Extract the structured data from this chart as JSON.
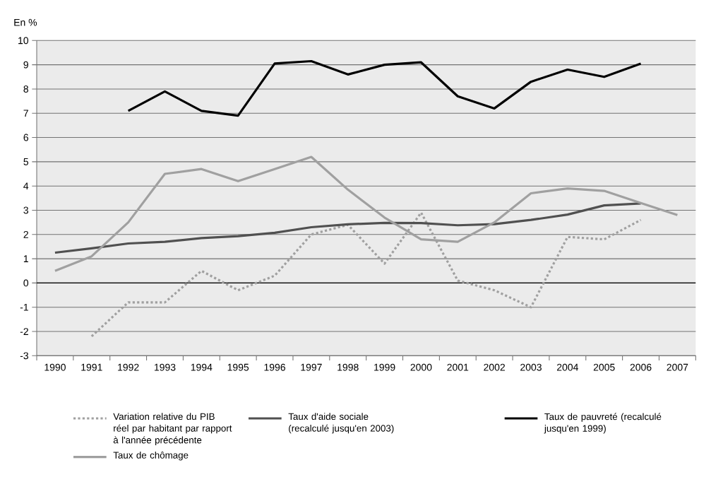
{
  "chart_data": {
    "type": "line",
    "ylabel": "En %",
    "categories": [
      "1990",
      "1991",
      "1992",
      "1993",
      "1994",
      "1995",
      "1996",
      "1997",
      "1998",
      "1999",
      "2000",
      "2001",
      "2002",
      "2003",
      "2004",
      "2005",
      "2006",
      "2007"
    ],
    "series": [
      {
        "name": "Variation relative du PIB réel par habitant par rapport à l'année précédente",
        "color": "#a0a0a0",
        "line_style": "dotted",
        "values": [
          null,
          -2.2,
          -0.8,
          -0.8,
          0.5,
          -0.3,
          0.3,
          2.0,
          2.4,
          0.8,
          2.9,
          0.1,
          -0.3,
          -1.0,
          1.9,
          1.8,
          2.6,
          null
        ]
      },
      {
        "name": "Taux d'aide sociale (recalculé jusqu'en 2003)",
        "color": "#505050",
        "values": [
          1.25,
          1.43,
          1.63,
          1.7,
          1.85,
          1.93,
          2.07,
          2.3,
          2.42,
          2.48,
          2.47,
          2.38,
          2.43,
          2.6,
          2.82,
          3.2,
          3.28,
          null
        ]
      },
      {
        "name": "Taux de pauvreté (recalculé jusqu'en 1999)",
        "color": "#000000",
        "values": [
          null,
          null,
          7.1,
          7.9,
          7.1,
          6.9,
          9.05,
          9.15,
          8.6,
          9.0,
          9.1,
          7.7,
          7.2,
          8.3,
          8.8,
          8.5,
          9.05,
          null
        ]
      },
      {
        "name": "Taux de chômage",
        "color": "#a0a0a0",
        "values": [
          0.5,
          1.1,
          2.5,
          4.5,
          4.7,
          4.2,
          4.7,
          5.2,
          3.85,
          2.7,
          1.8,
          1.7,
          2.5,
          3.7,
          3.9,
          3.8,
          3.3,
          2.8
        ]
      }
    ],
    "ylim": [
      -3,
      10
    ],
    "yticks": [
      -3,
      -2,
      -1,
      0,
      1,
      2,
      3,
      4,
      5,
      6,
      7,
      8,
      9,
      10
    ],
    "grid": "y",
    "legend": "bottom",
    "marker": "none",
    "line_style": "solid",
    "ref_lines": [
      {
        "axis": "y",
        "value": 0,
        "color": "#000000"
      }
    ]
  }
}
